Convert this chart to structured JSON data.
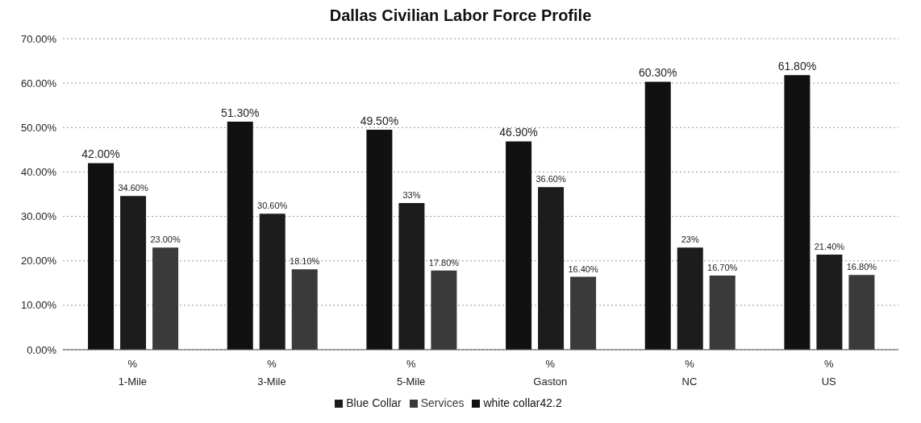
{
  "chart_data": {
    "type": "bar",
    "title": "Dallas Civilian Labor Force Profile",
    "categories": [
      "%\n1-Mile",
      "%\n3-Mile",
      "%\n5-Mile",
      "%\nGaston",
      "%\nNC",
      "%\nUS"
    ],
    "series": [
      {
        "name": "white collar42.2",
        "color": "#111111",
        "values": [
          42.0,
          51.3,
          49.5,
          46.9,
          60.3,
          61.8
        ],
        "value_labels": [
          "42.00%",
          "51.30%",
          "49.50%",
          "46.90%",
          "60.30%",
          "61.80%"
        ]
      },
      {
        "name": "Blue Collar",
        "color": "#1c1c1c",
        "values": [
          34.6,
          30.6,
          33,
          36.6,
          23,
          21.4
        ],
        "value_labels": [
          "34.60%",
          "30.60%",
          "33%",
          "36.60%",
          "23%",
          "21.40%"
        ]
      },
      {
        "name": "Services",
        "color": "#3a3a3a",
        "values": [
          23.0,
          18.1,
          17.8,
          16.4,
          16.7,
          16.8
        ],
        "value_labels": [
          "23.00%",
          "18.10%",
          "17.80%",
          "16.40%",
          "16.70%",
          "16.80%"
        ]
      }
    ],
    "ylim": [
      0,
      70
    ],
    "yticks": [
      {
        "value": 0,
        "label": "0.00%"
      },
      {
        "value": 10,
        "label": "10.00%"
      },
      {
        "value": 20,
        "label": "20.00%"
      },
      {
        "value": 30,
        "label": "30.00%"
      },
      {
        "value": 40,
        "label": "40.00%"
      },
      {
        "value": 50,
        "label": "50.00%"
      },
      {
        "value": 60,
        "label": "60.00%"
      },
      {
        "value": 70,
        "label": "70.00%"
      }
    ],
    "grid": "y",
    "legend": "bottom"
  }
}
